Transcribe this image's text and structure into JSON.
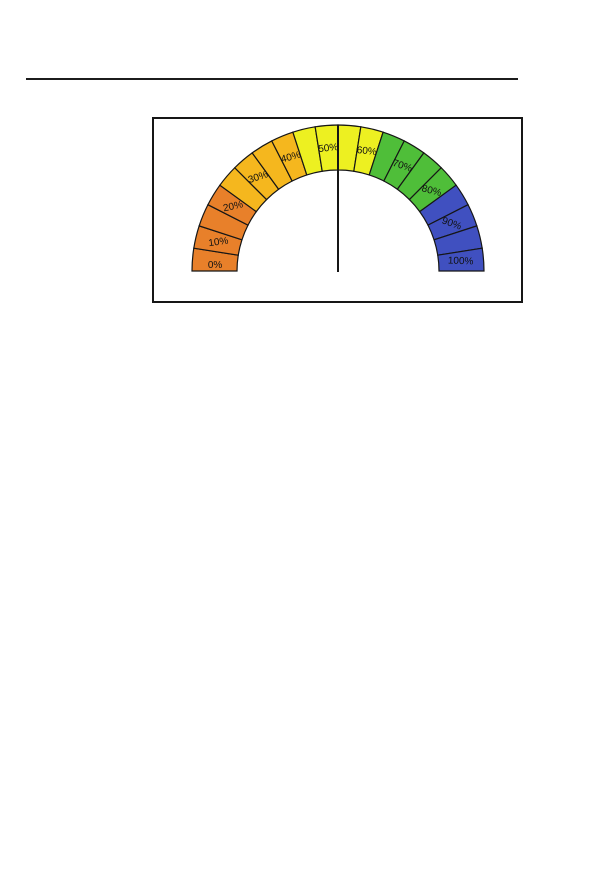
{
  "page": {
    "background": "#ffffff"
  },
  "top_rule": {
    "color": "#1c1c1c"
  },
  "chart_data": {
    "type": "gauge",
    "title": "",
    "unit": "%",
    "min": 0,
    "max": 100,
    "segment_step": 5,
    "needle_value": 50,
    "outline_color": "#161616",
    "needle_color": "#161616",
    "label_color": "#111111",
    "label_font_size": 10,
    "color_bands": [
      {
        "from": 0,
        "to": 20,
        "color": "#E8802A"
      },
      {
        "from": 20,
        "to": 40,
        "color": "#F5B71E"
      },
      {
        "from": 40,
        "to": 60,
        "color": "#EDF021"
      },
      {
        "from": 60,
        "to": 80,
        "color": "#4FBE39"
      },
      {
        "from": 80,
        "to": 100,
        "color": "#4050C0"
      }
    ],
    "ticks": [
      {
        "label": "0%",
        "pos": 1.5,
        "rot": 0
      },
      {
        "label": "10%",
        "pos": 7.5,
        "rot": -8
      },
      {
        "label": "20%",
        "pos": 17.5,
        "rot": -12
      },
      {
        "label": "30%",
        "pos": 27.5,
        "rot": -18
      },
      {
        "label": "40%",
        "pos": 37.5,
        "rot": -15
      },
      {
        "label": "50%",
        "pos": 47.5,
        "rot": -6
      },
      {
        "label": "60%",
        "pos": 57.5,
        "rot": 6
      },
      {
        "label": "70%",
        "pos": 67.5,
        "rot": 18
      },
      {
        "label": "80%",
        "pos": 77.5,
        "rot": 15
      },
      {
        "label": "90%",
        "pos": 87.5,
        "rot": 20
      },
      {
        "label": "100%",
        "pos": 97.5,
        "rot": 2
      }
    ]
  }
}
